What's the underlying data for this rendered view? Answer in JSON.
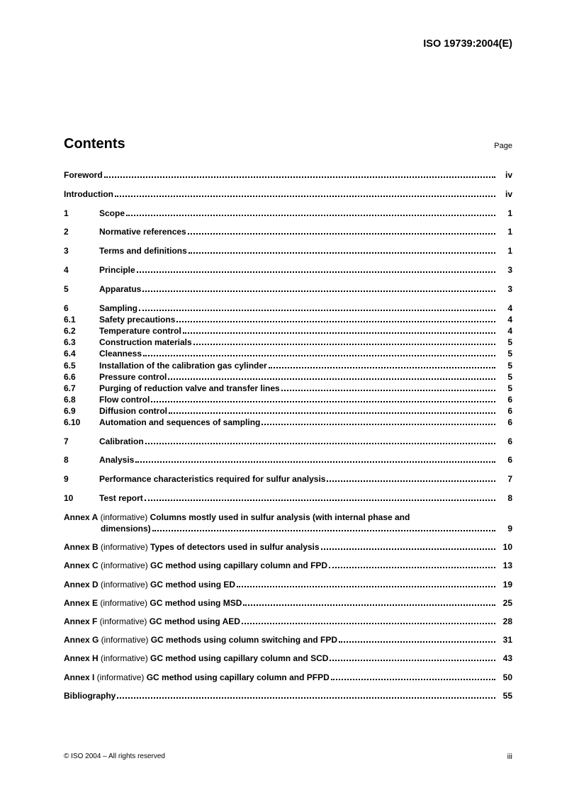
{
  "doc_id": "ISO 19739:2004(E)",
  "contents_title": "Contents",
  "page_label": "Page",
  "front": [
    {
      "title": "Foreword",
      "page": "iv"
    },
    {
      "title": "Introduction",
      "page": "iv"
    }
  ],
  "sections": [
    {
      "num": "1",
      "title": "Scope",
      "page": "1"
    },
    {
      "num": "2",
      "title": "Normative references",
      "page": "1"
    },
    {
      "num": "3",
      "title": "Terms and definitions",
      "page": "1"
    },
    {
      "num": "4",
      "title": "Principle",
      "page": "3"
    },
    {
      "num": "5",
      "title": "Apparatus",
      "page": "3"
    }
  ],
  "section6": [
    {
      "num": "6",
      "title": "Sampling",
      "page": "4"
    },
    {
      "num": "6.1",
      "title": "Safety precautions",
      "page": "4"
    },
    {
      "num": "6.2",
      "title": "Temperature control",
      "page": "4"
    },
    {
      "num": "6.3",
      "title": "Construction materials",
      "page": "5"
    },
    {
      "num": "6.4",
      "title": "Cleanness",
      "page": "5"
    },
    {
      "num": "6.5",
      "title": "Installation of the calibration gas cylinder",
      "page": "5"
    },
    {
      "num": "6.6",
      "title": "Pressure control",
      "page": "5"
    },
    {
      "num": "6.7",
      "title": "Purging of reduction valve and transfer lines",
      "page": "5"
    },
    {
      "num": "6.8",
      "title": "Flow control",
      "page": "6"
    },
    {
      "num": "6.9",
      "title": "Diffusion control",
      "page": "6"
    },
    {
      "num": "6.10",
      "title": "Automation and sequences of sampling",
      "page": "6"
    }
  ],
  "sections_after": [
    {
      "num": "7",
      "title": "Calibration",
      "page": "6"
    },
    {
      "num": "8",
      "title": "Analysis",
      "page": "6"
    },
    {
      "num": "9",
      "title": "Performance characteristics required for sulfur analysis",
      "page": "7"
    },
    {
      "num": "10",
      "title": "Test report",
      "page": "8"
    }
  ],
  "annexA": {
    "prefix": "Annex A",
    "note": " (informative)  ",
    "line1": "Columns mostly used in sulfur analysis (with internal phase and",
    "line2": "dimensions)",
    "page": "9"
  },
  "annexes": [
    {
      "prefix": "Annex B",
      "note": " (informative)  ",
      "title": "Types of detectors used in sulfur analysis",
      "page": "10"
    },
    {
      "prefix": "Annex C",
      "note": " (informative)  ",
      "title": "GC method using capillary column and FPD",
      "page": "13"
    },
    {
      "prefix": "Annex D",
      "note": " (informative)  ",
      "title": "GC method using ED",
      "page": "19"
    },
    {
      "prefix": "Annex E",
      "note": " (informative)  ",
      "title": "GC method using MSD",
      "page": "25"
    },
    {
      "prefix": "Annex F",
      "note": " (informative)  ",
      "title": "GC method using AED",
      "page": "28"
    },
    {
      "prefix": "Annex G",
      "note": " (informative)  ",
      "title": "GC methods using column switching and FPD",
      "page": "31"
    },
    {
      "prefix": "Annex H",
      "note": " (informative)  ",
      "title": "GC method using capillary column and SCD",
      "page": "43"
    },
    {
      "prefix": "Annex I",
      "note": " (informative)  ",
      "title": "GC method using capillary column and PFPD",
      "page": "50"
    }
  ],
  "bibliography": {
    "title": "Bibliography",
    "page": "55"
  },
  "footer": {
    "copyright": "© ISO 2004 – All rights reserved",
    "pagenum": "iii"
  }
}
